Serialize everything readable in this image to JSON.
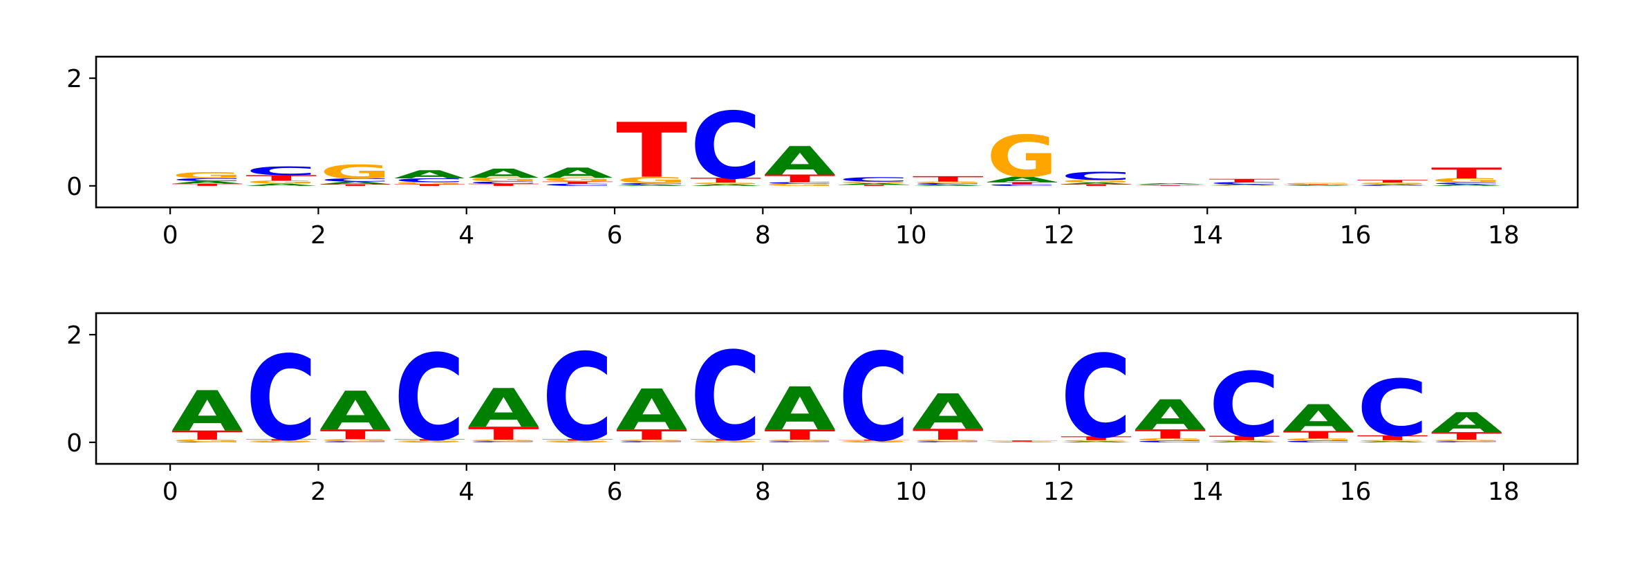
{
  "colors": {
    "A": "#008000",
    "C": "#0000ff",
    "G": "#ffa500",
    "T": "#ff0000"
  },
  "chart_data": [
    {
      "type": "sequence-logo",
      "title": "",
      "xlabel": "",
      "ylabel": "",
      "xlim": [
        -1,
        19
      ],
      "ylim": [
        -0.4,
        2.4
      ],
      "xticks": [
        "0",
        "2",
        "4",
        "6",
        "8",
        "10",
        "12",
        "14",
        "16",
        "18"
      ],
      "yticks": [
        "0",
        "2"
      ],
      "positions": [
        {
          "x": 0.5,
          "stack": [
            [
              "T",
              0.04
            ],
            [
              "A",
              0.05
            ],
            [
              "C",
              0.05
            ],
            [
              "G",
              0.12
            ]
          ]
        },
        {
          "x": 1.5,
          "stack": [
            [
              "A",
              0.04
            ],
            [
              "G",
              0.06
            ],
            [
              "T",
              0.1
            ],
            [
              "C",
              0.16
            ]
          ]
        },
        {
          "x": 2.5,
          "stack": [
            [
              "T",
              0.03
            ],
            [
              "A",
              0.05
            ],
            [
              "C",
              0.06
            ],
            [
              "G",
              0.26
            ]
          ]
        },
        {
          "x": 3.5,
          "stack": [
            [
              "T",
              0.03
            ],
            [
              "G",
              0.04
            ],
            [
              "C",
              0.07
            ],
            [
              "A",
              0.15
            ]
          ]
        },
        {
          "x": 4.5,
          "stack": [
            [
              "T",
              0.04
            ],
            [
              "C",
              0.04
            ],
            [
              "G",
              0.07
            ],
            [
              "A",
              0.17
            ]
          ]
        },
        {
          "x": 5.5,
          "stack": [
            [
              "C",
              0.04
            ],
            [
              "T",
              0.04
            ],
            [
              "G",
              0.07
            ],
            [
              "A",
              0.19
            ]
          ]
        },
        {
          "x": 6.5,
          "stack": [
            [
              "A",
              0.02
            ],
            [
              "C",
              0.03
            ],
            [
              "G",
              0.12
            ],
            [
              "T",
              1.02
            ]
          ]
        },
        {
          "x": 7.5,
          "stack": [
            [
              "A",
              0.03
            ],
            [
              "G",
              0.03
            ],
            [
              "T",
              0.09
            ],
            [
              "C",
              1.24
            ]
          ]
        },
        {
          "x": 8.5,
          "stack": [
            [
              "G",
              0.04
            ],
            [
              "C",
              0.03
            ],
            [
              "T",
              0.14
            ],
            [
              "A",
              0.53
            ]
          ]
        },
        {
          "x": 9.5,
          "stack": [
            [
              "T",
              0.02
            ],
            [
              "A",
              0.03
            ],
            [
              "G",
              0.03
            ],
            [
              "C",
              0.08
            ]
          ]
        },
        {
          "x": 10.5,
          "stack": [
            [
              "A",
              0.02
            ],
            [
              "C",
              0.03
            ],
            [
              "G",
              0.03
            ],
            [
              "T",
              0.1
            ]
          ]
        },
        {
          "x": 11.5,
          "stack": [
            [
              "C",
              0.03
            ],
            [
              "T",
              0.04
            ],
            [
              "A",
              0.1
            ],
            [
              "G",
              0.78
            ]
          ]
        },
        {
          "x": 12.5,
          "stack": [
            [
              "T",
              0.03
            ],
            [
              "A",
              0.03
            ],
            [
              "G",
              0.05
            ],
            [
              "C",
              0.15
            ]
          ]
        },
        {
          "x": 13.5,
          "stack": [
            [
              "T",
              0.01
            ],
            [
              "C",
              0.01
            ],
            [
              "G",
              0.01
            ],
            [
              "A",
              0.02
            ]
          ]
        },
        {
          "x": 14.5,
          "stack": [
            [
              "G",
              0.01
            ],
            [
              "A",
              0.02
            ],
            [
              "C",
              0.04
            ],
            [
              "T",
              0.06
            ]
          ]
        },
        {
          "x": 15.5,
          "stack": [
            [
              "A",
              0.01
            ],
            [
              "C",
              0.01
            ],
            [
              "T",
              0.01
            ],
            [
              "G",
              0.02
            ]
          ]
        },
        {
          "x": 16.5,
          "stack": [
            [
              "C",
              0.01
            ],
            [
              "A",
              0.02
            ],
            [
              "G",
              0.03
            ],
            [
              "T",
              0.05
            ]
          ]
        },
        {
          "x": 17.5,
          "stack": [
            [
              "A",
              0.03
            ],
            [
              "C",
              0.03
            ],
            [
              "G",
              0.08
            ],
            [
              "T",
              0.2
            ]
          ]
        }
      ]
    },
    {
      "type": "sequence-logo",
      "title": "",
      "xlabel": "",
      "ylabel": "",
      "xlim": [
        -1,
        19
      ],
      "ylim": [
        -0.4,
        2.4
      ],
      "xticks": [
        "0",
        "2",
        "4",
        "6",
        "8",
        "10",
        "12",
        "14",
        "16",
        "18"
      ],
      "yticks": [
        "0",
        "2"
      ],
      "positions": [
        {
          "x": 0.5,
          "stack": [
            [
              "C",
              0.01
            ],
            [
              "G",
              0.04
            ],
            [
              "T",
              0.17
            ],
            [
              "A",
              0.75
            ]
          ]
        },
        {
          "x": 1.5,
          "stack": [
            [
              "A",
              0.01
            ],
            [
              "G",
              0.02
            ],
            [
              "T",
              0.03
            ],
            [
              "C",
              1.58
            ]
          ]
        },
        {
          "x": 2.5,
          "stack": [
            [
              "C",
              0.02
            ],
            [
              "G",
              0.04
            ],
            [
              "T",
              0.18
            ],
            [
              "A",
              0.72
            ]
          ]
        },
        {
          "x": 3.5,
          "stack": [
            [
              "A",
              0.01
            ],
            [
              "G",
              0.02
            ],
            [
              "T",
              0.03
            ],
            [
              "C",
              1.6
            ]
          ]
        },
        {
          "x": 4.5,
          "stack": [
            [
              "C",
              0.02
            ],
            [
              "G",
              0.03
            ],
            [
              "T",
              0.24
            ],
            [
              "A",
              0.72
            ]
          ]
        },
        {
          "x": 5.5,
          "stack": [
            [
              "A",
              0.01
            ],
            [
              "G",
              0.02
            ],
            [
              "T",
              0.03
            ],
            [
              "C",
              1.62
            ]
          ]
        },
        {
          "x": 6.5,
          "stack": [
            [
              "C",
              0.02
            ],
            [
              "G",
              0.03
            ],
            [
              "T",
              0.19
            ],
            [
              "A",
              0.76
            ]
          ]
        },
        {
          "x": 7.5,
          "stack": [
            [
              "A",
              0.01
            ],
            [
              "G",
              0.02
            ],
            [
              "T",
              0.03
            ],
            [
              "C",
              1.65
            ]
          ]
        },
        {
          "x": 8.5,
          "stack": [
            [
              "C",
              0.02
            ],
            [
              "G",
              0.03
            ],
            [
              "T",
              0.19
            ],
            [
              "A",
              0.8
            ]
          ]
        },
        {
          "x": 9.5,
          "stack": [
            [
              "A",
              0.01
            ],
            [
              "G",
              0.02
            ],
            [
              "T",
              0.02
            ],
            [
              "C",
              1.64
            ]
          ]
        },
        {
          "x": 10.5,
          "stack": [
            [
              "C",
              0.02
            ],
            [
              "G",
              0.03
            ],
            [
              "T",
              0.2
            ],
            [
              "A",
              0.66
            ]
          ]
        },
        {
          "x": 11.5,
          "stack": [
            [
              "A",
              0.005
            ],
            [
              "C",
              0.005
            ],
            [
              "G",
              0.005
            ],
            [
              "T",
              0.02
            ]
          ]
        },
        {
          "x": 12.5,
          "stack": [
            [
              "A",
              0.02
            ],
            [
              "G",
              0.02
            ],
            [
              "T",
              0.07
            ],
            [
              "C",
              1.54
            ]
          ]
        },
        {
          "x": 13.5,
          "stack": [
            [
              "C",
              0.03
            ],
            [
              "G",
              0.04
            ],
            [
              "T",
              0.17
            ],
            [
              "A",
              0.56
            ]
          ]
        },
        {
          "x": 14.5,
          "stack": [
            [
              "A",
              0.02
            ],
            [
              "G",
              0.02
            ],
            [
              "T",
              0.08
            ],
            [
              "C",
              1.2
            ]
          ]
        },
        {
          "x": 15.5,
          "stack": [
            [
              "C",
              0.03
            ],
            [
              "G",
              0.04
            ],
            [
              "T",
              0.14
            ],
            [
              "A",
              0.5
            ]
          ]
        },
        {
          "x": 16.5,
          "stack": [
            [
              "A",
              0.02
            ],
            [
              "G",
              0.02
            ],
            [
              "T",
              0.09
            ],
            [
              "C",
              1.05
            ]
          ]
        },
        {
          "x": 17.5,
          "stack": [
            [
              "C",
              0.02
            ],
            [
              "G",
              0.03
            ],
            [
              "T",
              0.14
            ],
            [
              "A",
              0.37
            ]
          ]
        }
      ]
    }
  ]
}
